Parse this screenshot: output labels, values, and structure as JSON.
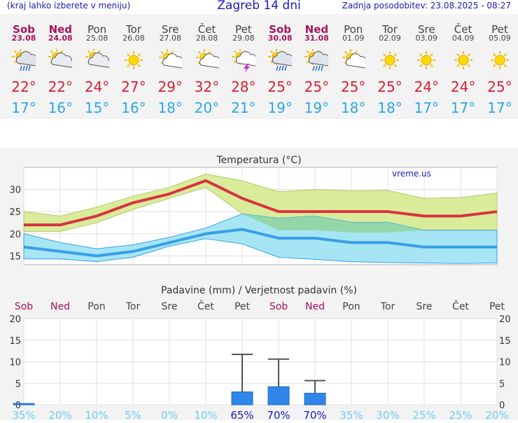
{
  "header": {
    "menu_hint": "(kraj lahko izberete v meniju)",
    "title": "Zagreb 14 dni",
    "updated": "Zadnja posodobitev: 23.08.2025 - 08:27"
  },
  "days": [
    {
      "name": "Sob",
      "date": "23.08",
      "weekend": true,
      "icon": "rain-sun-icon",
      "tmax": "22°",
      "tmin": "17°"
    },
    {
      "name": "Ned",
      "date": "24.08",
      "weekend": true,
      "icon": "partly-cloudy-icon",
      "tmax": "22°",
      "tmin": "16°"
    },
    {
      "name": "Pon",
      "date": "25.08",
      "weekend": false,
      "icon": "partly-cloudy-icon",
      "tmax": "24°",
      "tmin": "15°"
    },
    {
      "name": "Tor",
      "date": "26.08",
      "weekend": false,
      "icon": "sun-icon",
      "tmax": "27°",
      "tmin": "16°"
    },
    {
      "name": "Sre",
      "date": "27.08",
      "weekend": false,
      "icon": "sun-cloud-icon",
      "tmax": "29°",
      "tmin": "18°"
    },
    {
      "name": "Čet",
      "date": "28.08",
      "weekend": false,
      "icon": "sun-cloud-icon",
      "tmax": "32°",
      "tmin": "20°"
    },
    {
      "name": "Pet",
      "date": "29.08",
      "weekend": false,
      "icon": "thunderstorm-sun-icon",
      "tmax": "28°",
      "tmin": "21°"
    },
    {
      "name": "Sob",
      "date": "30.08",
      "weekend": true,
      "icon": "rain-sun-icon",
      "tmax": "25°",
      "tmin": "19°"
    },
    {
      "name": "Ned",
      "date": "31.08",
      "weekend": true,
      "icon": "rain-sun-icon",
      "tmax": "25°",
      "tmin": "19°"
    },
    {
      "name": "Pon",
      "date": "01.09",
      "weekend": false,
      "icon": "sun-cloud-icon",
      "tmax": "25°",
      "tmin": "18°"
    },
    {
      "name": "Tor",
      "date": "02.09",
      "weekend": false,
      "icon": "sun-icon",
      "tmax": "25°",
      "tmin": "18°"
    },
    {
      "name": "Sre",
      "date": "03.09",
      "weekend": false,
      "icon": "sun-icon",
      "tmax": "24°",
      "tmin": "17°"
    },
    {
      "name": "Čet",
      "date": "04.09",
      "weekend": false,
      "icon": "sun-icon",
      "tmax": "24°",
      "tmin": "17°"
    },
    {
      "name": "Pet",
      "date": "05.09",
      "weekend": false,
      "icon": "sun-icon",
      "tmax": "25°",
      "tmin": "17°"
    }
  ],
  "chart_data": [
    {
      "type": "line",
      "title": "Temperatura (°C)",
      "watermark": "vreme.us",
      "ylim": [
        13,
        35
      ],
      "yticks": [
        15,
        20,
        25,
        30
      ],
      "grid": true,
      "series": [
        {
          "color": "#d93240",
          "values": [
            22,
            22,
            24,
            27,
            29,
            32,
            28,
            25,
            25,
            25,
            25,
            24,
            24,
            25
          ]
        },
        {
          "color": "#3a9ee8",
          "values": [
            17,
            16,
            15,
            16,
            18,
            20,
            21,
            19,
            19,
            18,
            18,
            17,
            17,
            17
          ]
        }
      ],
      "max_band_upper": [
        25,
        24,
        26,
        28.5,
        30.5,
        33.5,
        32,
        29.5,
        30,
        29.7,
        29.8,
        28,
        28.2,
        29.2
      ],
      "max_band_lower": [
        20.5,
        20.5,
        22.5,
        25.5,
        28,
        30.5,
        24.5,
        20.8,
        20.8,
        20.3,
        20.3,
        20.8,
        20.8,
        20.8
      ],
      "min_band_upper": [
        20,
        18,
        16.6,
        17.5,
        19.2,
        21.3,
        24.5,
        23.5,
        24.0,
        22.6,
        22.6,
        20.8,
        20.8,
        20.8
      ],
      "min_band_lower": [
        14.3,
        14.3,
        13.7,
        14.7,
        17.2,
        18.9,
        17.7,
        14.7,
        14.2,
        13.7,
        13.5,
        13.4,
        13.3,
        13.4
      ]
    },
    {
      "type": "bar",
      "title": "Padavine (mm) / Verjetnost padavin (%)",
      "ylim": [
        0,
        20
      ],
      "yticks": [
        0,
        5,
        10,
        15,
        20
      ],
      "categories": [
        "Sob",
        "Ned",
        "Pon",
        "Tor",
        "Sre",
        "Čet",
        "Pet",
        "Sob",
        "Ned",
        "Pon",
        "Tor",
        "Sre",
        "Čet",
        "Pet"
      ],
      "weekend": [
        true,
        true,
        false,
        false,
        false,
        false,
        false,
        true,
        true,
        false,
        false,
        false,
        false,
        false
      ],
      "precipitation_mm": [
        0.3,
        0,
        0,
        0,
        0,
        0,
        3.0,
        4.2,
        2.7,
        0,
        0,
        0,
        0,
        0
      ],
      "precip_max_mm": [
        0.3,
        0,
        0,
        0,
        0,
        0,
        11.7,
        10.6,
        5.6,
        0,
        0,
        0,
        0,
        0
      ],
      "probability": [
        "35%",
        "20%",
        "10%",
        "5%",
        "0%",
        "10%",
        "65%",
        "70%",
        "70%",
        "35%",
        "30%",
        "25%",
        "25%",
        "20%"
      ],
      "probability_strong": [
        false,
        false,
        false,
        false,
        false,
        false,
        true,
        true,
        true,
        false,
        false,
        false,
        false,
        false
      ]
    }
  ]
}
